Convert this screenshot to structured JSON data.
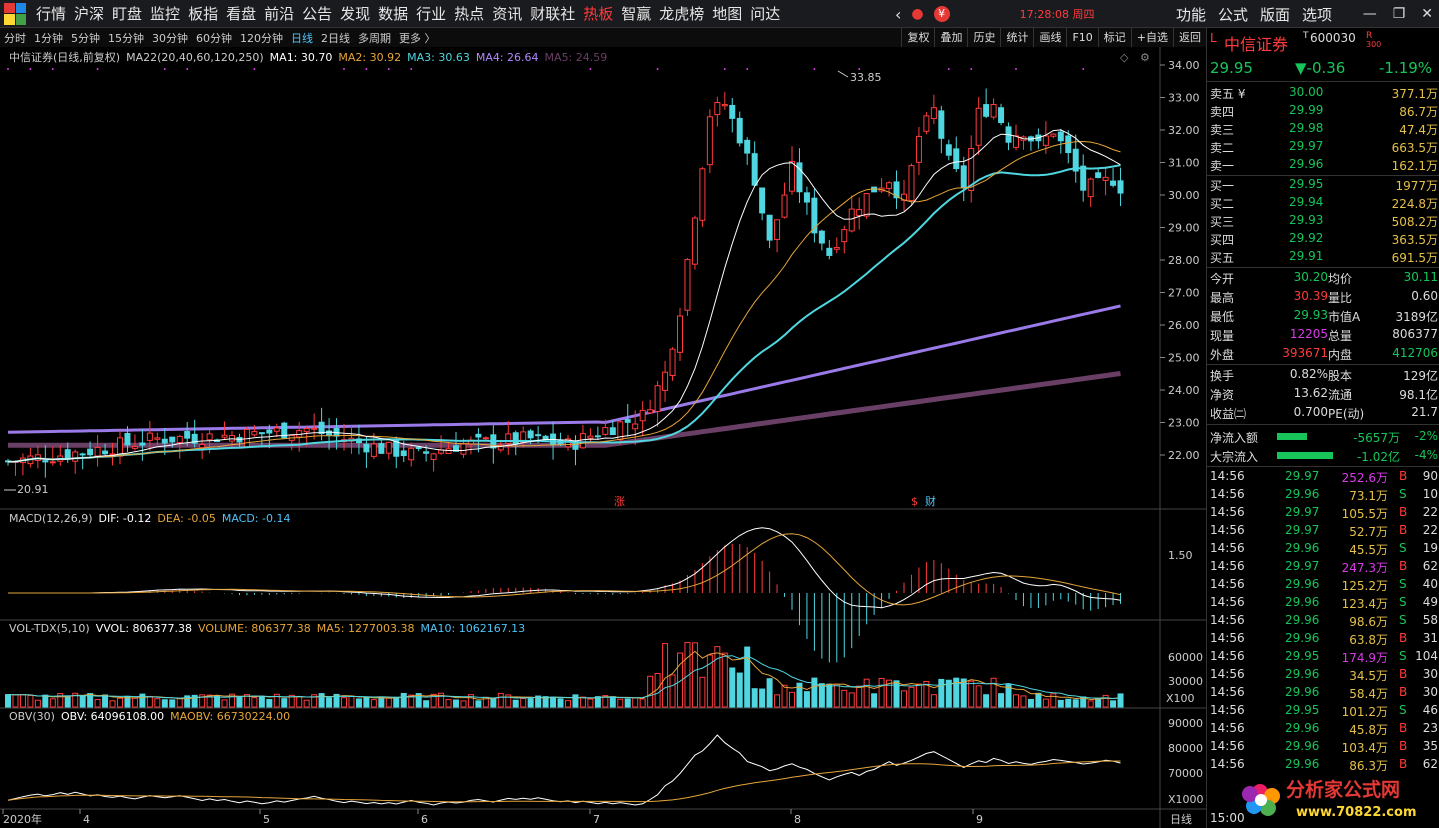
{
  "menu": [
    "行情",
    "沪深",
    "盯盘",
    "监控",
    "板指",
    "看盘",
    "前沿",
    "公告",
    "发现",
    "数据",
    "行业",
    "热点",
    "资讯",
    "财联社",
    "热板",
    "智赢",
    "龙虎榜",
    "地图",
    "问达"
  ],
  "active_menu": "热板",
  "clock": "17:28:08 周四",
  "right_menu": [
    "功能",
    "公式",
    "版面",
    "选项"
  ],
  "window_controls": [
    "—",
    "❐",
    "✕"
  ],
  "periods": [
    "分时",
    "1分钟",
    "5分钟",
    "15分钟",
    "30分钟",
    "60分钟",
    "120分钟",
    "日线",
    "2日线",
    "多周期",
    "更多 〉"
  ],
  "selected_period": "日线",
  "tools": [
    "复权",
    "叠加",
    "历史",
    "统计",
    "画线",
    "F10",
    "标记",
    "+自选",
    "返回"
  ],
  "main_legend": {
    "name": "中信证券(日线,前复权)",
    "ma": "MA22(20,40,60,120,250)",
    "ma1": "MA1: 30.70",
    "ma2": "MA2: 30.92",
    "ma3": "MA3: 30.63",
    "ma4": "MA4: 26.64",
    "ma5": "MA5: 24.59"
  },
  "high_label": "33.85",
  "low_label": "20.91",
  "price_axis": [
    "34.00",
    "33.00",
    "32.00",
    "31.00",
    "30.00",
    "29.00",
    "28.00",
    "27.00",
    "26.00",
    "25.00",
    "24.00",
    "23.00",
    "22.00"
  ],
  "event_marks": [
    "涨",
    "$",
    "财"
  ],
  "macd_legend": {
    "name": "MACD(12,26,9)",
    "dif": "DIF: -0.12",
    "dea": "DEA: -0.05",
    "macd": "MACD: -0.14",
    "axis": "1.50"
  },
  "vol_legend": {
    "name": "VOL-TDX(5,10)",
    "vvol": "VVOL: 806377.38",
    "volume": "VOLUME: 806377.38",
    "ma5": "MA5: 1277003.38",
    "ma10": "MA10: 1062167.13",
    "axis": [
      "60000",
      "30000",
      "X100"
    ]
  },
  "obv_legend": {
    "name": "OBV(30)",
    "obv": "OBV: 64096108.00",
    "maobv": "MAOBV: 66730224.00",
    "axis": [
      "90000",
      "80000",
      "70000",
      "X1000"
    ]
  },
  "date_axis": [
    "2020年",
    "4",
    "5",
    "6",
    "7",
    "8",
    "9"
  ],
  "date_axis_right": "日线",
  "quote": {
    "prefix": "L",
    "name": "中信证券",
    "tag": "T",
    "code": "600030",
    "badge": "R",
    "badge2": "300",
    "price": "29.95",
    "change": "▼-0.36",
    "pct": "-1.19%",
    "asks": [
      [
        "卖五 ¥",
        "30.00",
        "377.1万"
      ],
      [
        "卖四",
        "29.99",
        "86.7万"
      ],
      [
        "卖三",
        "29.98",
        "47.4万"
      ],
      [
        "卖二",
        "29.97",
        "663.5万"
      ],
      [
        "卖一",
        "29.96",
        "162.1万"
      ]
    ],
    "bids": [
      [
        "买一",
        "29.95",
        "1977万"
      ],
      [
        "买二",
        "29.94",
        "224.8万"
      ],
      [
        "买三",
        "29.93",
        "508.2万"
      ],
      [
        "买四",
        "29.92",
        "363.5万"
      ],
      [
        "买五",
        "29.91",
        "691.5万"
      ]
    ],
    "stats": [
      [
        "今开",
        "30.20",
        "均价",
        "30.11"
      ],
      [
        "最高",
        "30.39",
        "量比",
        "0.60"
      ],
      [
        "最低",
        "29.93",
        "市值A",
        "3189亿"
      ],
      [
        "现量",
        "12205",
        "总量",
        "806377"
      ],
      [
        "外盘",
        "393671",
        "内盘",
        "412706"
      ]
    ],
    "stats2": [
      [
        "换手",
        "0.82%",
        "股本",
        "129亿"
      ],
      [
        "净资",
        "13.62",
        "流通",
        "98.1亿"
      ],
      [
        "收益㈡",
        "0.700",
        "PE(动)",
        "21.7"
      ]
    ],
    "flows": [
      [
        "净流入额",
        "-5657万",
        "-2%"
      ],
      [
        "大宗流入",
        "-1.02亿",
        "-4%"
      ]
    ],
    "ticks": [
      [
        "14:56",
        "29.97",
        "252.6万",
        "B",
        "90"
      ],
      [
        "14:56",
        "29.96",
        "73.1万",
        "S",
        "10"
      ],
      [
        "14:56",
        "29.97",
        "105.5万",
        "B",
        "22"
      ],
      [
        "14:56",
        "29.97",
        "52.7万",
        "B",
        "22"
      ],
      [
        "14:56",
        "29.96",
        "45.5万",
        "S",
        "19"
      ],
      [
        "14:56",
        "29.97",
        "247.3万",
        "B",
        "62"
      ],
      [
        "14:56",
        "29.96",
        "125.2万",
        "S",
        "40"
      ],
      [
        "14:56",
        "29.96",
        "123.4万",
        "S",
        "49"
      ],
      [
        "14:56",
        "29.96",
        "98.6万",
        "S",
        "58"
      ],
      [
        "14:56",
        "29.96",
        "63.8万",
        "B",
        "31"
      ],
      [
        "14:56",
        "29.95",
        "174.9万",
        "S",
        "104"
      ],
      [
        "14:56",
        "29.96",
        "34.5万",
        "B",
        "30"
      ],
      [
        "14:56",
        "29.96",
        "58.4万",
        "B",
        "30"
      ],
      [
        "14:56",
        "29.95",
        "101.2万",
        "S",
        "46"
      ],
      [
        "14:56",
        "29.96",
        "45.8万",
        "B",
        "23"
      ],
      [
        "14:56",
        "29.96",
        "103.4万",
        "B",
        "35"
      ],
      [
        "14:56",
        "29.96",
        "86.3万",
        "B",
        "62"
      ]
    ],
    "tail": "15:00"
  },
  "watermark": {
    "title": "分析家公式网",
    "url": "www.70822.com"
  }
}
